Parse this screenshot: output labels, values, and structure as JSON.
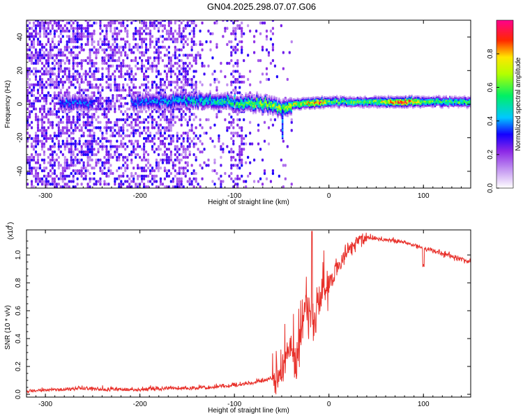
{
  "title": "GN04.2025.298.07.07.G06",
  "chart_data": [
    {
      "type": "heatmap",
      "name": "spectrogram",
      "xlabel": "Height of straight line (km)",
      "ylabel": "Frequency (Hz)",
      "xlim": [
        -320,
        150
      ],
      "ylim": [
        -50,
        50
      ],
      "xticks": [
        -300,
        -200,
        -100,
        0,
        100
      ],
      "xtick_labels": [
        "-300",
        "-200",
        "-100",
        "0",
        "100"
      ],
      "yticks": [
        -40,
        -20,
        0,
        20,
        40
      ],
      "ytick_labels": [
        "-40",
        "-20",
        "0",
        "20",
        "40"
      ],
      "colorbar": {
        "label": "Normalized spectral amplitude",
        "range": [
          0.0,
          1.0
        ],
        "ticks": [
          0.0,
          0.2,
          0.4,
          0.6,
          0.8
        ],
        "tick_labels": [
          "0.0",
          "0.2",
          "0.4",
          "0.6",
          "0.8"
        ],
        "colormap": [
          "#ffffff",
          "#8a2be2",
          "#0000ff",
          "#00c8ff",
          "#00ff00",
          "#ffff00",
          "#ff0000",
          "#ff0090"
        ]
      },
      "ridge": {
        "points": [
          [
            -280,
            0
          ],
          [
            -200,
            1
          ],
          [
            -150,
            2
          ],
          [
            -110,
            1
          ],
          [
            -80,
            0
          ],
          [
            -55,
            -2
          ],
          [
            -48,
            -3
          ],
          [
            -40,
            -1
          ],
          [
            -30,
            0
          ],
          [
            0,
            1
          ],
          [
            50,
            1
          ],
          [
            100,
            1
          ],
          [
            150,
            1
          ]
        ],
        "amplitude": [
          [
            -280,
            0.35
          ],
          [
            -200,
            0.35
          ],
          [
            -150,
            0.45
          ],
          [
            -110,
            0.5
          ],
          [
            -80,
            0.6
          ],
          [
            -50,
            0.65
          ],
          [
            -30,
            0.7
          ],
          [
            -10,
            0.85
          ],
          [
            0,
            0.6
          ],
          [
            40,
            0.55
          ],
          [
            80,
            0.9
          ],
          [
            100,
            0.6
          ],
          [
            150,
            0.55
          ]
        ]
      }
    },
    {
      "type": "line",
      "name": "snr",
      "xlabel": "Height of straight line (km)",
      "ylabel": "SNR (10 * v/v)",
      "y_multiplier": "(x10",
      "y_multiplier_exp": "4",
      "y_multiplier_close": ")",
      "xlim": [
        -320,
        150
      ],
      "ylim": [
        -0.02,
        1.18
      ],
      "xticks": [
        -300,
        -200,
        -100,
        0,
        100
      ],
      "xtick_labels": [
        "-300",
        "-200",
        "-100",
        "0",
        "100"
      ],
      "yticks": [
        0.0,
        0.2,
        0.4,
        0.6,
        0.8,
        1.0
      ],
      "ytick_labels": [
        "0.0",
        "0.2",
        "0.4",
        "0.6",
        "0.8",
        "1.0"
      ],
      "color": "#e8302a",
      "series": [
        {
          "name": "SNR",
          "x": [
            -320,
            -300,
            -280,
            -260,
            -240,
            -220,
            -200,
            -180,
            -160,
            -140,
            -120,
            -100,
            -80,
            -60,
            -50,
            -45,
            -40,
            -35,
            -30,
            -25,
            -20,
            -15,
            -10,
            -5,
            0,
            10,
            20,
            30,
            40,
            50,
            60,
            70,
            80,
            90,
            100,
            110,
            120,
            130,
            140,
            150
          ],
          "y": [
            0.01,
            0.015,
            0.02,
            0.03,
            0.02,
            0.02,
            0.02,
            0.025,
            0.03,
            0.03,
            0.04,
            0.05,
            0.07,
            0.1,
            0.15,
            0.25,
            0.35,
            0.2,
            0.45,
            0.7,
            0.6,
            0.55,
            0.7,
            0.72,
            0.8,
            0.92,
            1.03,
            1.1,
            1.13,
            1.12,
            1.11,
            1.1,
            1.09,
            1.07,
            1.05,
            1.03,
            1.01,
            0.99,
            0.97,
            0.95
          ]
        }
      ]
    }
  ]
}
